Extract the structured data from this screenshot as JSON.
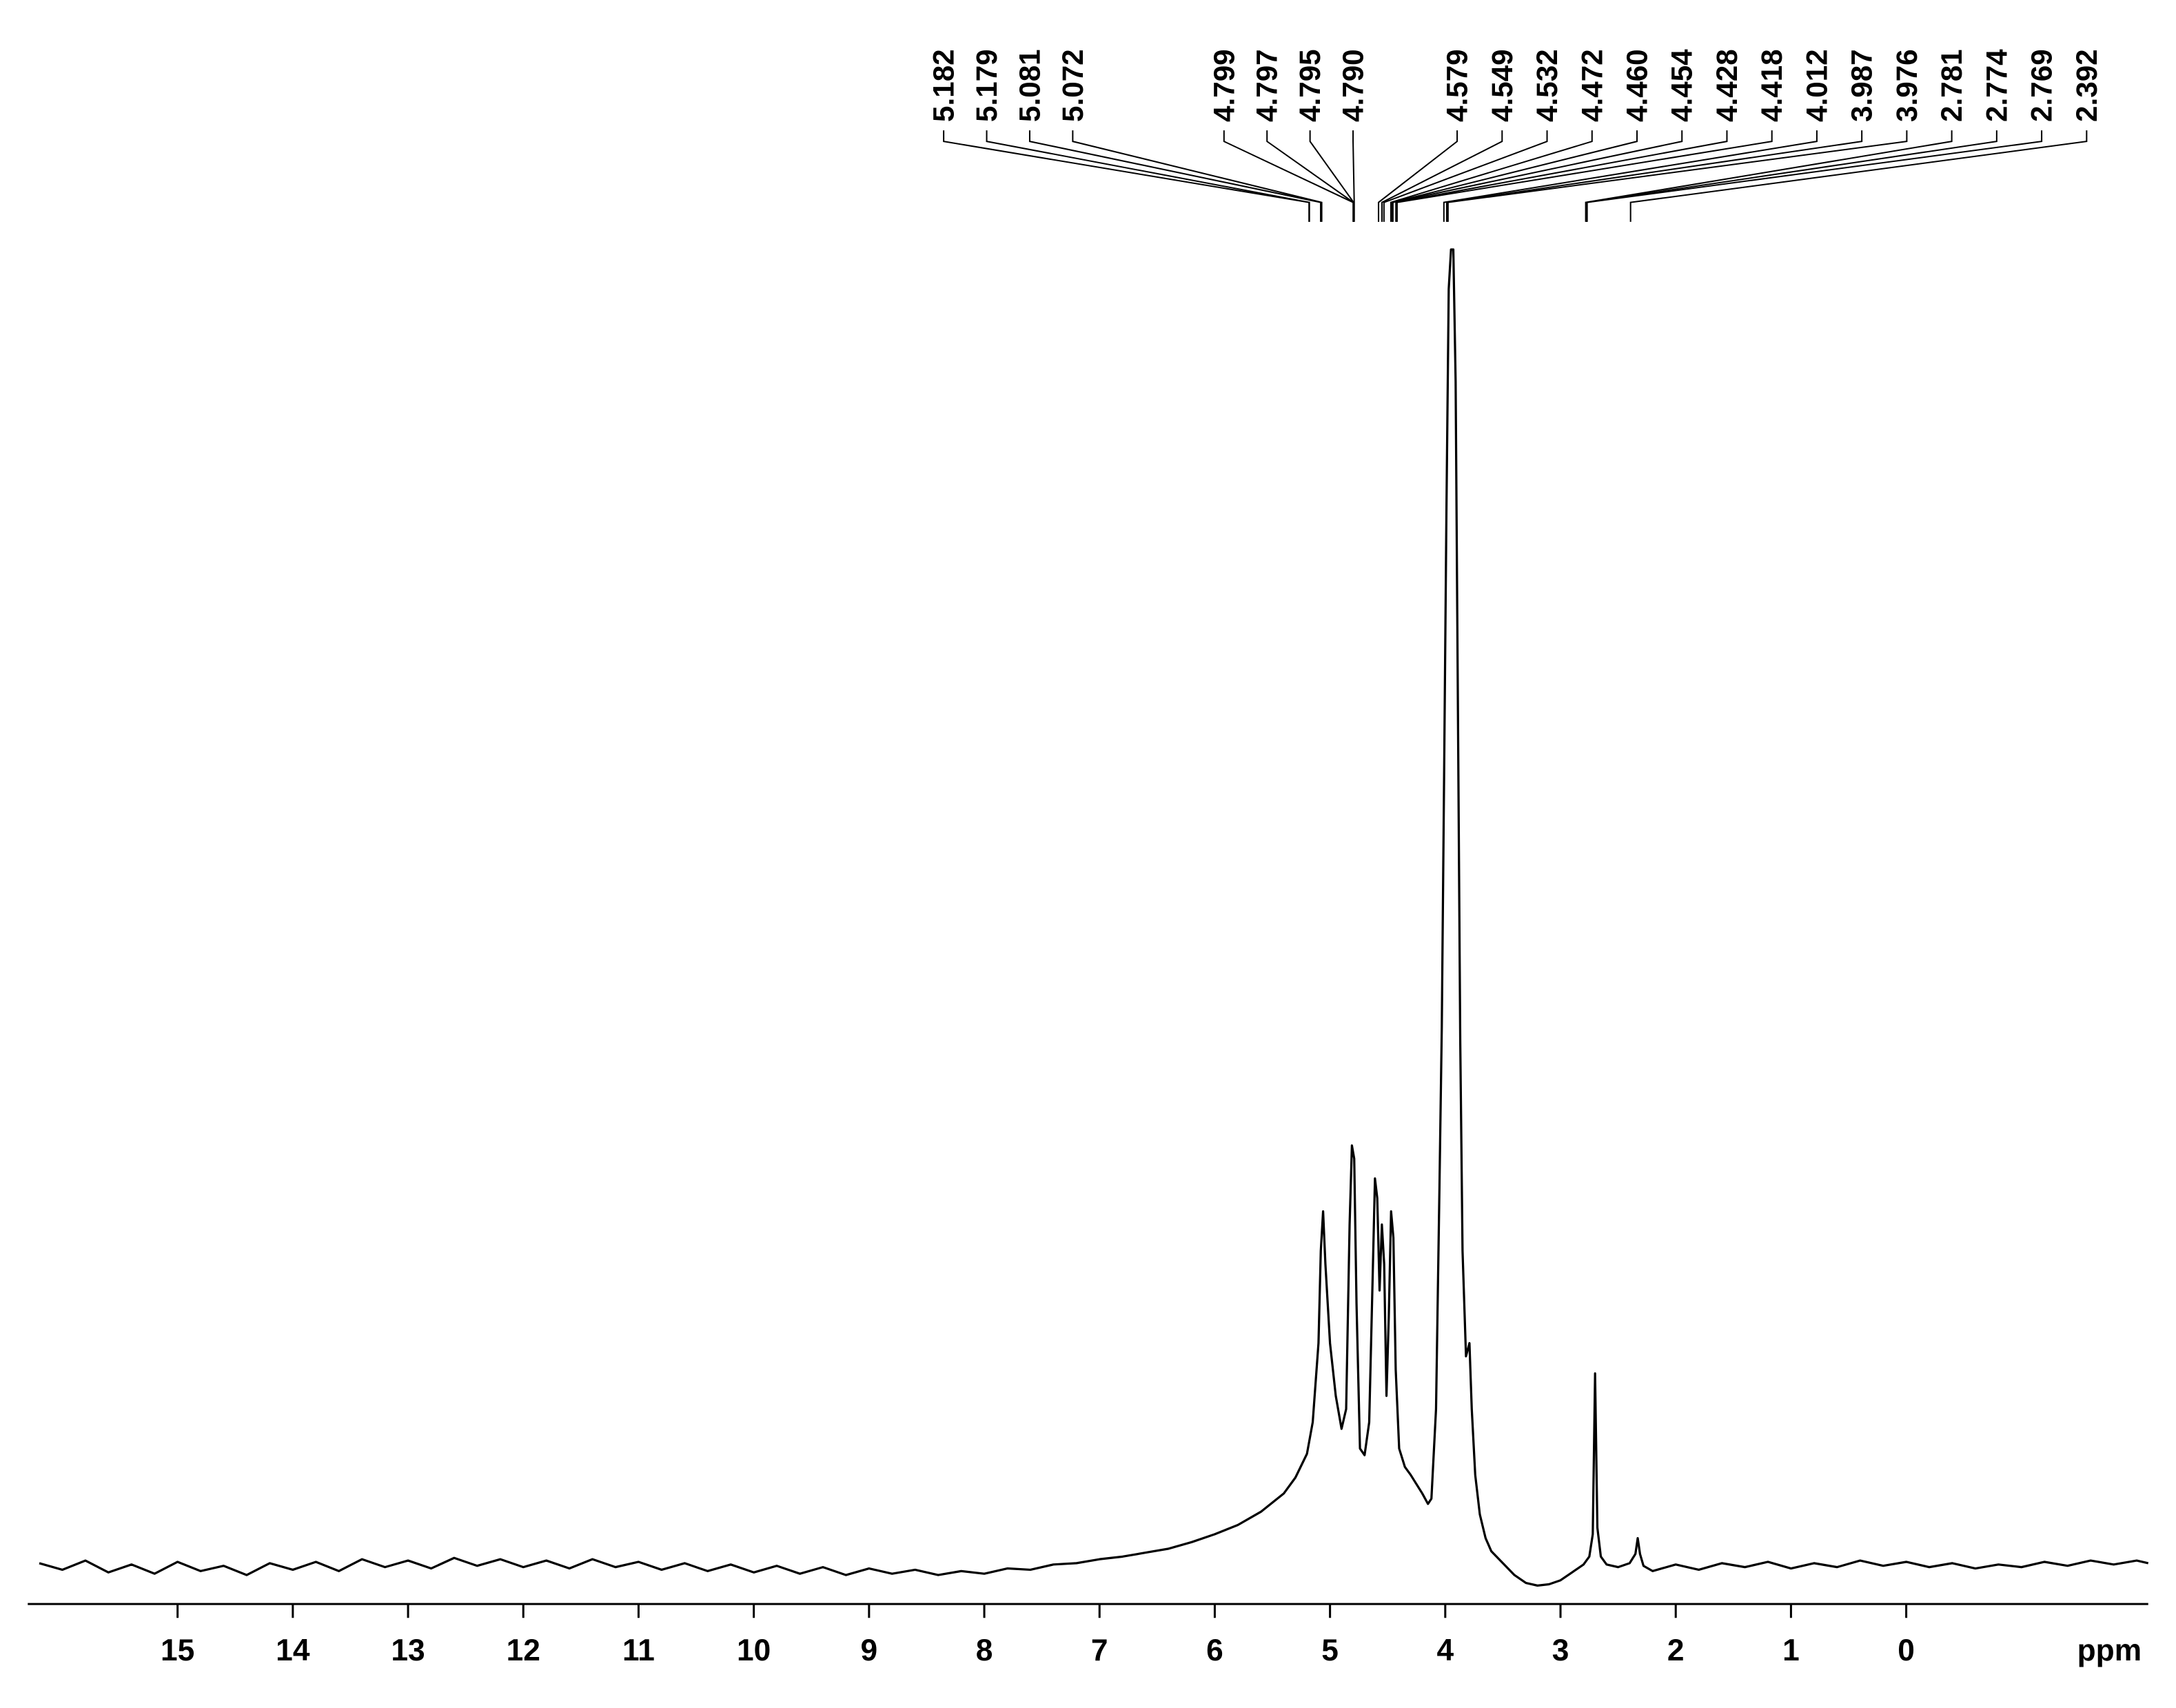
{
  "chart_data": {
    "type": "line",
    "xlabel": "ppm",
    "xlim": [
      16.3,
      -2.1
    ],
    "xticks": [
      15,
      14,
      13,
      12,
      11,
      10,
      9,
      8,
      7,
      6,
      5,
      4,
      3,
      2,
      1,
      0
    ],
    "ylim": [
      -2.8,
      100
    ],
    "peaks": [
      {
        "value": 5.182,
        "label": "5.182"
      },
      {
        "value": 5.179,
        "label": "5.179"
      },
      {
        "value": 5.081,
        "label": "5.081"
      },
      {
        "value": 5.072,
        "label": "5.072"
      },
      {
        "value": 4.799,
        "label": "4.799"
      },
      {
        "value": 4.797,
        "label": "4.797"
      },
      {
        "value": 4.795,
        "label": "4.795"
      },
      {
        "value": 4.79,
        "label": "4.790"
      },
      {
        "value": 4.579,
        "label": "4.579"
      },
      {
        "value": 4.549,
        "label": "4.549"
      },
      {
        "value": 4.532,
        "label": "4.532"
      },
      {
        "value": 4.472,
        "label": "4.472"
      },
      {
        "value": 4.46,
        "label": "4.460"
      },
      {
        "value": 4.454,
        "label": "4.454"
      },
      {
        "value": 4.428,
        "label": "4.428"
      },
      {
        "value": 4.418,
        "label": "4.418"
      },
      {
        "value": 4.012,
        "label": "4.012"
      },
      {
        "value": 3.987,
        "label": "3.987"
      },
      {
        "value": 3.976,
        "label": "3.976"
      },
      {
        "value": 2.781,
        "label": "2.781"
      },
      {
        "value": 2.774,
        "label": "2.774"
      },
      {
        "value": 2.769,
        "label": "2.769"
      },
      {
        "value": 2.392,
        "label": "2.392"
      }
    ],
    "x": [
      16.2,
      16.0,
      15.8,
      15.6,
      15.4,
      15.2,
      15.0,
      14.8,
      14.6,
      14.4,
      14.2,
      14.0,
      13.8,
      13.6,
      13.4,
      13.2,
      13.0,
      12.8,
      12.6,
      12.4,
      12.2,
      12.0,
      11.8,
      11.6,
      11.4,
      11.2,
      11.0,
      10.8,
      10.6,
      10.4,
      10.2,
      10.0,
      9.8,
      9.6,
      9.4,
      9.2,
      9.0,
      8.8,
      8.6,
      8.4,
      8.2,
      8.0,
      7.8,
      7.6,
      7.4,
      7.2,
      7.0,
      6.8,
      6.6,
      6.4,
      6.2,
      6.0,
      5.8,
      5.6,
      5.4,
      5.3,
      5.2,
      5.15,
      5.1,
      5.08,
      5.06,
      5.04,
      5.0,
      4.95,
      4.9,
      4.86,
      4.83,
      4.81,
      4.79,
      4.77,
      4.74,
      4.7,
      4.66,
      4.63,
      4.61,
      4.59,
      4.57,
      4.55,
      4.53,
      4.51,
      4.49,
      4.47,
      4.45,
      4.43,
      4.4,
      4.35,
      4.3,
      4.25,
      4.2,
      4.15,
      4.12,
      4.08,
      4.05,
      4.03,
      4.01,
      3.99,
      3.97,
      3.95,
      3.93,
      3.91,
      3.89,
      3.87,
      3.85,
      3.82,
      3.79,
      3.77,
      3.74,
      3.7,
      3.65,
      3.6,
      3.5,
      3.4,
      3.3,
      3.2,
      3.1,
      3.0,
      2.9,
      2.8,
      2.75,
      2.72,
      2.7,
      2.68,
      2.65,
      2.6,
      2.5,
      2.4,
      2.35,
      2.33,
      2.31,
      2.28,
      2.2,
      2.0,
      1.8,
      1.6,
      1.4,
      1.2,
      1.0,
      0.8,
      0.6,
      0.4,
      0.2,
      0.0,
      -0.2,
      -0.4,
      -0.6,
      -0.8,
      -1.0,
      -1.2,
      -1.4,
      -1.6,
      -1.8,
      -2.0,
      -2.1
    ],
    "series": [
      {
        "color": "#000000",
        "values": [
          0.3,
          -0.2,
          0.5,
          -0.4,
          0.2,
          -0.5,
          0.4,
          -0.3,
          0.1,
          -0.6,
          0.3,
          -0.2,
          0.4,
          -0.3,
          0.6,
          0.0,
          0.5,
          -0.1,
          0.7,
          0.1,
          0.6,
          0.0,
          0.5,
          -0.1,
          0.6,
          0.0,
          0.4,
          -0.2,
          0.3,
          -0.3,
          0.2,
          -0.4,
          0.1,
          -0.5,
          0.0,
          -0.6,
          -0.1,
          -0.5,
          -0.2,
          -0.6,
          -0.3,
          -0.5,
          -0.1,
          -0.2,
          0.2,
          0.3,
          0.6,
          0.8,
          1.1,
          1.4,
          1.9,
          2.5,
          3.2,
          4.2,
          5.6,
          6.8,
          8.6,
          11,
          17,
          24,
          27,
          23,
          17,
          13,
          10.5,
          12,
          26,
          32,
          31,
          20,
          9,
          8.5,
          11,
          22,
          29.5,
          28,
          21,
          26,
          23,
          13,
          19,
          27,
          25,
          15,
          9,
          7.6,
          7,
          6.3,
          5.6,
          4.8,
          5.2,
          12,
          29,
          41,
          60,
          80,
          97,
          100,
          100,
          90,
          65,
          40,
          24,
          16,
          17,
          12,
          7,
          4,
          2.2,
          1.2,
          0.3,
          -0.6,
          -1.2,
          -1.4,
          -1.3,
          -1.0,
          -0.4,
          0.2,
          0.8,
          2.5,
          14.7,
          3,
          0.8,
          0.2,
          0.0,
          0.3,
          1.0,
          2.2,
          1.0,
          0.1,
          -0.3,
          0.2,
          -0.2,
          0.3,
          0.0,
          0.4,
          -0.1,
          0.3,
          0.0,
          0.5,
          0.1,
          0.4,
          0.0,
          0.3,
          -0.1,
          0.2,
          0.0,
          0.4,
          0.1,
          0.5,
          0.2,
          0.5,
          0.3
        ]
      }
    ]
  }
}
